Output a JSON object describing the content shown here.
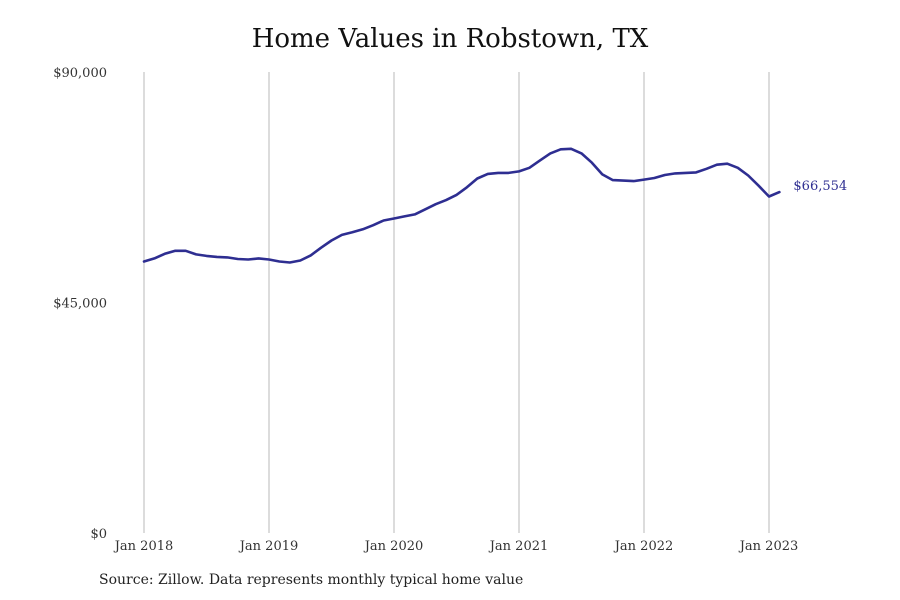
{
  "chart_data": {
    "type": "line",
    "title": "Home Values in Robstown, TX",
    "xlabel": "",
    "ylabel": "",
    "ylim": [
      0,
      90000
    ],
    "y_ticks": [
      {
        "value": 0,
        "label": "$0"
      },
      {
        "value": 45000,
        "label": "$45,000"
      },
      {
        "value": 90000,
        "label": "$90,000"
      }
    ],
    "x_range": [
      "2018-01",
      "2023-02"
    ],
    "x_ticks": [
      {
        "date": "2018-01",
        "label": "Jan 2018"
      },
      {
        "date": "2019-01",
        "label": "Jan 2019"
      },
      {
        "date": "2020-01",
        "label": "Jan 2020"
      },
      {
        "date": "2021-01",
        "label": "Jan 2021"
      },
      {
        "date": "2022-01",
        "label": "Jan 2022"
      },
      {
        "date": "2023-01",
        "label": "Jan 2023"
      }
    ],
    "grid": "vertical",
    "line_color": "#2e2e91",
    "end_label": "$66,554",
    "series": [
      {
        "x": [
          "2018-01",
          "2018-02",
          "2018-03",
          "2018-04",
          "2018-05",
          "2018-06",
          "2018-07",
          "2018-08",
          "2018-09",
          "2018-10",
          "2018-11",
          "2018-12",
          "2019-01",
          "2019-02",
          "2019-03",
          "2019-04",
          "2019-05",
          "2019-06",
          "2019-07",
          "2019-08",
          "2019-09",
          "2019-10",
          "2019-11",
          "2019-12",
          "2020-01",
          "2020-02",
          "2020-03",
          "2020-04",
          "2020-05",
          "2020-06",
          "2020-07",
          "2020-08",
          "2020-09",
          "2020-10",
          "2020-11",
          "2020-12",
          "2021-01",
          "2021-02",
          "2021-03",
          "2021-04",
          "2021-05",
          "2021-06",
          "2021-07",
          "2021-08",
          "2021-09",
          "2021-10",
          "2021-11",
          "2021-12",
          "2022-01",
          "2022-02",
          "2022-03",
          "2022-04",
          "2022-05",
          "2022-06",
          "2022-07",
          "2022-08",
          "2022-09",
          "2022-10",
          "2022-11",
          "2022-12",
          "2023-01",
          "2023-02"
        ],
        "y": [
          53000,
          53600,
          54500,
          55100,
          55100,
          54400,
          54100,
          53900,
          53800,
          53500,
          53400,
          53600,
          53400,
          53000,
          52800,
          53200,
          54200,
          55700,
          57100,
          58200,
          58700,
          59300,
          60100,
          61000,
          61400,
          61800,
          62200,
          63200,
          64200,
          65000,
          66000,
          67500,
          69200,
          70100,
          70300,
          70300,
          70600,
          71300,
          72700,
          74100,
          74900,
          75000,
          74100,
          72300,
          70000,
          68900,
          68800,
          68700,
          69000,
          69300,
          69900,
          70200,
          70300,
          70400,
          71100,
          71900,
          72100,
          71300,
          69800,
          67800,
          65700,
          66554
        ]
      }
    ],
    "source": "Source: Zillow. Data represents monthly typical home value"
  }
}
